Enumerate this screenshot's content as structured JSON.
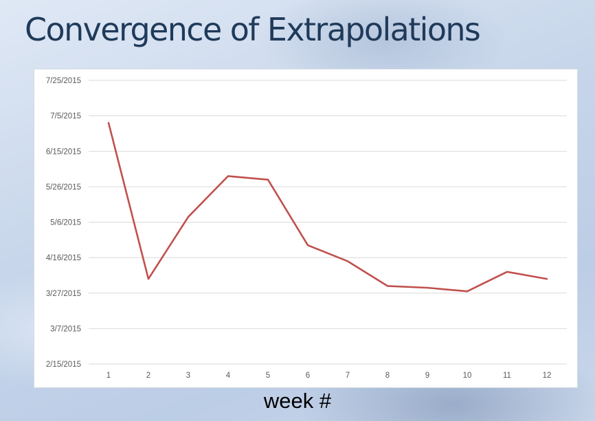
{
  "slide": {
    "title": "Convergence of Extrapolations",
    "xlabel": "week #"
  },
  "colors": {
    "line": "#c0504d",
    "grid": "#d9d9d9",
    "tick_text": "#595959"
  },
  "chart_data": {
    "type": "line",
    "title": "",
    "xlabel": "week #",
    "ylabel": "",
    "x": [
      1,
      2,
      3,
      4,
      5,
      6,
      7,
      8,
      9,
      10,
      11,
      12
    ],
    "y_tick_labels": [
      "7/25/2015",
      "7/5/2015",
      "6/15/2015",
      "5/26/2015",
      "5/6/2015",
      "4/16/2015",
      "3/27/2015",
      "3/7/2015",
      "2/15/2015"
    ],
    "ylim": [
      "2015-02-15",
      "2015-07-25"
    ],
    "grid": true,
    "legend": "none",
    "series": [
      {
        "values": [
          "2015-07-01",
          "2015-04-04",
          "2015-05-09",
          "2015-05-32",
          "2015-05-30",
          "2015-04-23",
          "2015-04-14",
          "2015-03-31",
          "2015-03-30",
          "2015-03-28",
          "2015-04-08",
          "2015-04-04"
        ]
      }
    ]
  }
}
